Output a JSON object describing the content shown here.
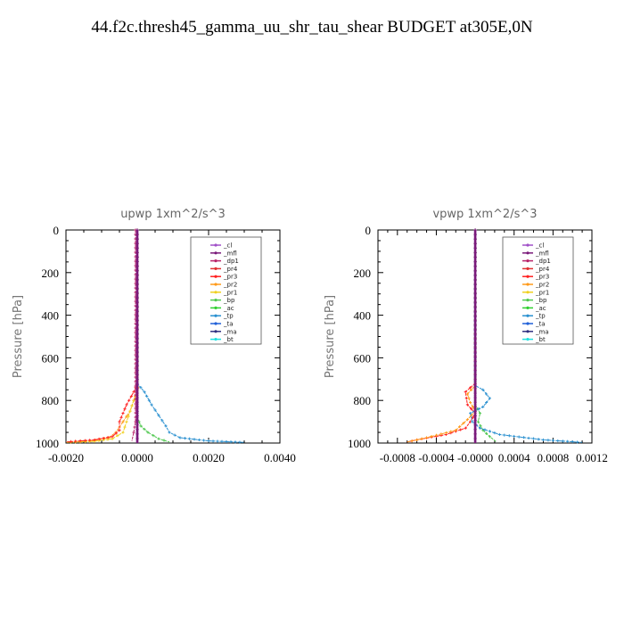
{
  "title": "44.f2c.thresh45_gamma_uu_shr_tau_shear  BUDGET at305E,0N",
  "legend_items": [
    {
      "name": "_cl",
      "color": "#a050c8"
    },
    {
      "name": "_mfl",
      "color": "#7a1a7a"
    },
    {
      "name": "_dp1",
      "color": "#b8246a"
    },
    {
      "name": "_pr4",
      "color": "#e03030"
    },
    {
      "name": "_pr3",
      "color": "#ff2020"
    },
    {
      "name": "_pr2",
      "color": "#ff9a1a"
    },
    {
      "name": "_pr1",
      "color": "#f0d020"
    },
    {
      "name": "_bp",
      "color": "#50c850"
    },
    {
      "name": "_ac",
      "color": "#30d030"
    },
    {
      "name": "_tp",
      "color": "#2a90d0"
    },
    {
      "name": "_ta",
      "color": "#2060d8"
    },
    {
      "name": "_ma",
      "color": "#303080"
    },
    {
      "name": "_bt",
      "color": "#20e0e0"
    }
  ],
  "chart_data": [
    {
      "type": "line",
      "title": "upwp  1xm^2/s^3",
      "ylabel": "Pressure [hPa]",
      "xlim": [
        -0.002,
        0.004
      ],
      "ylim": [
        1000,
        0
      ],
      "x_ticks": [
        -0.002,
        0.0,
        0.002,
        0.004
      ],
      "x_tick_labels": [
        "-0.0020",
        "0.0000",
        "0.0020",
        "0.0040"
      ],
      "y_ticks": [
        0,
        200,
        400,
        600,
        800,
        1000
      ],
      "y_tick_labels": [
        "0",
        "200",
        "400",
        "600",
        "800",
        "1000"
      ],
      "series": [
        {
          "name": "_pr2",
          "color": "#ff9a1a",
          "points": [
            [
              0,
              0
            ],
            [
              0,
              700
            ],
            [
              3e-05,
              740
            ],
            [
              -0.0001,
              800
            ],
            [
              -0.0002,
              850
            ],
            [
              -0.0004,
              900
            ],
            [
              -0.0006,
              950
            ],
            [
              -0.0008,
              975
            ],
            [
              -0.0013,
              990
            ],
            [
              -0.002,
              995
            ]
          ]
        },
        {
          "name": "_pr1",
          "color": "#f0d020",
          "points": [
            [
              0,
              0
            ],
            [
              0,
              750
            ],
            [
              -0.0001,
              800
            ],
            [
              -0.0002,
              850
            ],
            [
              -0.0003,
              900
            ],
            [
              -0.0004,
              950
            ],
            [
              -0.0007,
              980
            ],
            [
              -0.0012,
              992
            ],
            [
              -0.002,
              997
            ]
          ]
        },
        {
          "name": "_pr3",
          "color": "#ff2020",
          "points": [
            [
              0,
              0
            ],
            [
              0,
              720
            ],
            [
              -0.0001,
              760
            ],
            [
              -0.0003,
              820
            ],
            [
              -0.0004,
              860
            ],
            [
              -0.0005,
              900
            ],
            [
              -0.0005,
              940
            ],
            [
              -0.0007,
              970
            ],
            [
              -0.0012,
              985
            ],
            [
              -0.002,
              995
            ]
          ]
        },
        {
          "name": "_bp",
          "color": "#50c850",
          "points": [
            [
              0,
              0
            ],
            [
              0,
              880
            ],
            [
              0.0001,
              920
            ],
            [
              0.0003,
              950
            ],
            [
              0.0006,
              980
            ],
            [
              0.0009,
              995
            ]
          ]
        },
        {
          "name": "_tp",
          "color": "#2a90d0",
          "points": [
            [
              0,
              0
            ],
            [
              0,
              720
            ],
            [
              0.0002,
              760
            ],
            [
              0.0004,
              820
            ],
            [
              0.0006,
              870
            ],
            [
              0.0008,
              920
            ],
            [
              0.0009,
              950
            ],
            [
              0.0012,
              975
            ],
            [
              0.002,
              990
            ],
            [
              0.003,
              997
            ]
          ]
        },
        {
          "name": "_dp1",
          "color": "#b8246a",
          "points": [
            [
              -5e-05,
              0
            ],
            [
              -5e-05,
              900
            ],
            [
              -0.0001,
              950
            ],
            [
              -0.00015,
              990
            ]
          ]
        },
        {
          "name": "_cl",
          "color": "#a050c8",
          "points": [
            [
              0,
              0
            ],
            [
              0,
              1000
            ]
          ]
        },
        {
          "name": "_mfl",
          "color": "#7a1a7a",
          "points": [
            [
              0,
              0
            ],
            [
              0,
              1000
            ]
          ]
        }
      ]
    },
    {
      "type": "line",
      "title": "vpwp  1xm^2/s^3",
      "ylabel": "Pressure [hPa]",
      "xlim": [
        -0.001,
        0.0012
      ],
      "ylim": [
        1000,
        0
      ],
      "x_ticks": [
        -0.0008,
        -0.0004,
        0.0,
        0.0004,
        0.0008,
        0.0012
      ],
      "x_tick_labels": [
        "-0.0008",
        "-0.0004",
        "-0.0000",
        "0.0004",
        "0.0008",
        "0.0012"
      ],
      "y_ticks": [
        0,
        200,
        400,
        600,
        800,
        1000
      ],
      "y_tick_labels": [
        "0",
        "200",
        "400",
        "600",
        "800",
        "1000"
      ],
      "series": [
        {
          "name": "_pr3",
          "color": "#ff2020",
          "points": [
            [
              0,
              0
            ],
            [
              0,
              720
            ],
            [
              -0.0001,
              760
            ],
            [
              -8e-05,
              820
            ],
            [
              0,
              860
            ],
            [
              -5e-05,
              900
            ],
            [
              -0.0001,
              930
            ],
            [
              -0.0003,
              960
            ],
            [
              -0.0006,
              985
            ],
            [
              -0.0007,
              995
            ]
          ]
        },
        {
          "name": "_pr2",
          "color": "#ff9a1a",
          "points": [
            [
              0,
              0
            ],
            [
              0,
              730
            ],
            [
              -8e-05,
              770
            ],
            [
              -5e-05,
              810
            ],
            [
              0,
              850
            ],
            [
              -8e-05,
              890
            ],
            [
              -0.0002,
              940
            ],
            [
              -0.0005,
              975
            ],
            [
              -0.0007,
              995
            ]
          ]
        },
        {
          "name": "_bp",
          "color": "#50c850",
          "points": [
            [
              0,
              0
            ],
            [
              0,
              820
            ],
            [
              5e-05,
              860
            ],
            [
              3e-05,
              900
            ],
            [
              8e-05,
              940
            ],
            [
              0.00015,
              970
            ],
            [
              0.00022,
              995
            ]
          ]
        },
        {
          "name": "_tp",
          "color": "#2a90d0",
          "points": [
            [
              0,
              0
            ],
            [
              0,
              730
            ],
            [
              8e-05,
              750
            ],
            [
              0.00015,
              790
            ],
            [
              8e-05,
              830
            ],
            [
              -5e-05,
              860
            ],
            [
              -3e-05,
              900
            ],
            [
              5e-05,
              930
            ],
            [
              0.00025,
              960
            ],
            [
              0.0007,
              985
            ],
            [
              0.0011,
              997
            ]
          ]
        },
        {
          "name": "_cl",
          "color": "#a050c8",
          "points": [
            [
              0,
              0
            ],
            [
              0,
              1000
            ]
          ]
        },
        {
          "name": "_mfl",
          "color": "#7a1a7a",
          "points": [
            [
              0,
              0
            ],
            [
              0,
              1000
            ]
          ]
        }
      ]
    }
  ]
}
